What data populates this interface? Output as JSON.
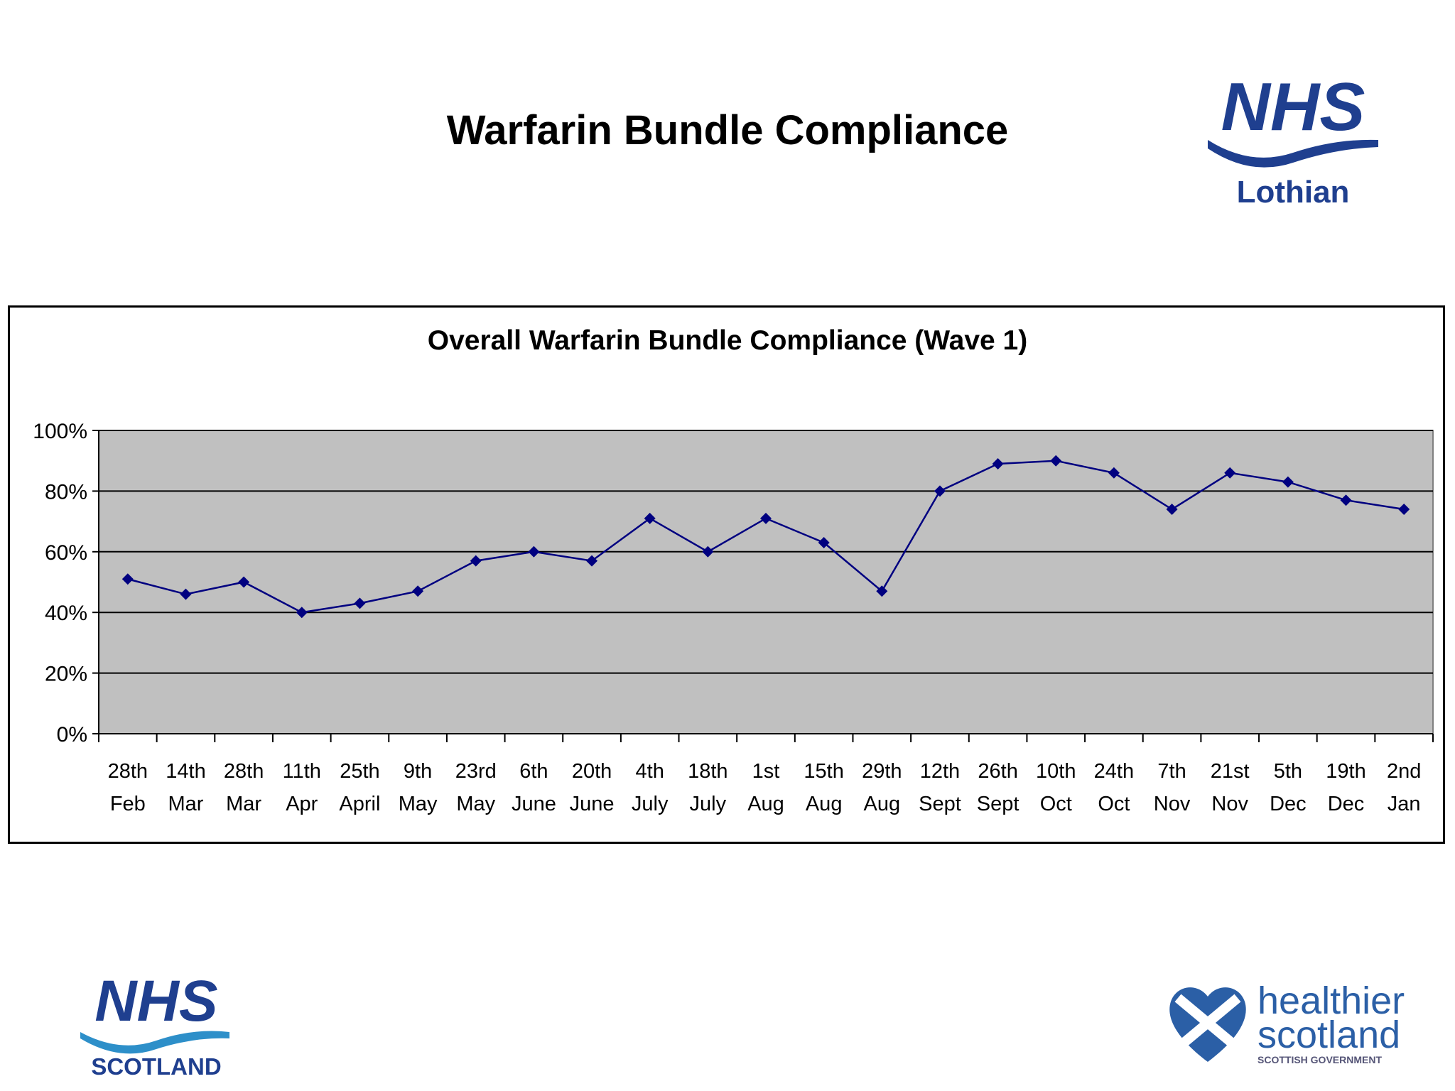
{
  "slide": {
    "title": "Warfarin Bundle Compliance"
  },
  "logos": {
    "nhs_lothian": {
      "line1": "NHS",
      "line2": "Lothian"
    },
    "nhs_scotland": {
      "line1": "NHS",
      "line2": "SCOTLAND"
    },
    "healthier_scotland": {
      "line1": "healthier",
      "line2": "scotland",
      "line3": "SCOTTISH GOVERNMENT"
    }
  },
  "colors": {
    "nhs_blue": "#1f3f8f",
    "series_line": "#000080",
    "plot_background": "#c0c0c0",
    "healthier_blue": "#2b5fa6"
  },
  "chart_data": {
    "type": "line",
    "title": "Overall Warfarin Bundle Compliance (Wave 1)",
    "categories": [
      [
        "28th",
        "Feb"
      ],
      [
        "14th",
        "Mar"
      ],
      [
        "28th",
        "Mar"
      ],
      [
        "11th",
        "Apr"
      ],
      [
        "25th",
        "April"
      ],
      [
        "9th",
        "May"
      ],
      [
        "23rd",
        "May"
      ],
      [
        "6th",
        "June"
      ],
      [
        "20th",
        "June"
      ],
      [
        "4th",
        "July"
      ],
      [
        "18th",
        "July"
      ],
      [
        "1st",
        "Aug"
      ],
      [
        "15th",
        "Aug"
      ],
      [
        "29th",
        "Aug"
      ],
      [
        "12th",
        "Sept"
      ],
      [
        "26th",
        "Sept"
      ],
      [
        "10th",
        "Oct"
      ],
      [
        "24th",
        "Oct"
      ],
      [
        "7th",
        "Nov"
      ],
      [
        "21st",
        "Nov"
      ],
      [
        "5th",
        "Dec"
      ],
      [
        "19th",
        "Dec"
      ],
      [
        "2nd",
        "Jan"
      ]
    ],
    "series": [
      {
        "values": [
          51,
          46,
          50,
          40,
          43,
          47,
          57,
          60,
          57,
          71,
          60,
          71,
          63,
          47,
          80,
          89,
          90,
          86,
          74,
          86,
          83,
          77,
          74
        ]
      }
    ],
    "ylim": [
      0,
      100
    ],
    "yticks": [
      0,
      20,
      40,
      60,
      80,
      100
    ],
    "ytick_labels": [
      "0%",
      "20%",
      "40%",
      "60%",
      "80%",
      "100%"
    ],
    "grid": true,
    "marker": "diamond",
    "legend": "none"
  }
}
